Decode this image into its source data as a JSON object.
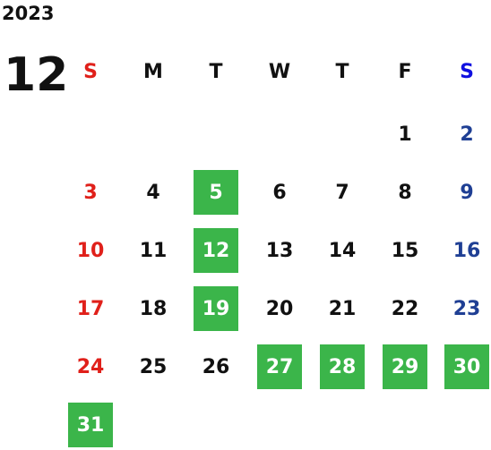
{
  "year": "2023",
  "month": "12",
  "weekdays": [
    "S",
    "M",
    "T",
    "W",
    "T",
    "F",
    "S"
  ],
  "weeks": [
    [
      null,
      null,
      null,
      null,
      null,
      {
        "day": "1",
        "highlighted": false
      },
      {
        "day": "2",
        "highlighted": false
      }
    ],
    [
      {
        "day": "3",
        "highlighted": false
      },
      {
        "day": "4",
        "highlighted": false
      },
      {
        "day": "5",
        "highlighted": true
      },
      {
        "day": "6",
        "highlighted": false
      },
      {
        "day": "7",
        "highlighted": false
      },
      {
        "day": "8",
        "highlighted": false
      },
      {
        "day": "9",
        "highlighted": false
      }
    ],
    [
      {
        "day": "10",
        "highlighted": false
      },
      {
        "day": "11",
        "highlighted": false
      },
      {
        "day": "12",
        "highlighted": true
      },
      {
        "day": "13",
        "highlighted": false
      },
      {
        "day": "14",
        "highlighted": false
      },
      {
        "day": "15",
        "highlighted": false
      },
      {
        "day": "16",
        "highlighted": false
      }
    ],
    [
      {
        "day": "17",
        "highlighted": false
      },
      {
        "day": "18",
        "highlighted": false
      },
      {
        "day": "19",
        "highlighted": true
      },
      {
        "day": "20",
        "highlighted": false
      },
      {
        "day": "21",
        "highlighted": false
      },
      {
        "day": "22",
        "highlighted": false
      },
      {
        "day": "23",
        "highlighted": false
      }
    ],
    [
      {
        "day": "24",
        "highlighted": false
      },
      {
        "day": "25",
        "highlighted": false
      },
      {
        "day": "26",
        "highlighted": false
      },
      {
        "day": "27",
        "highlighted": true
      },
      {
        "day": "28",
        "highlighted": true
      },
      {
        "day": "29",
        "highlighted": true
      },
      {
        "day": "30",
        "highlighted": true
      }
    ],
    [
      {
        "day": "31",
        "highlighted": true
      },
      null,
      null,
      null,
      null,
      null,
      null
    ]
  ]
}
